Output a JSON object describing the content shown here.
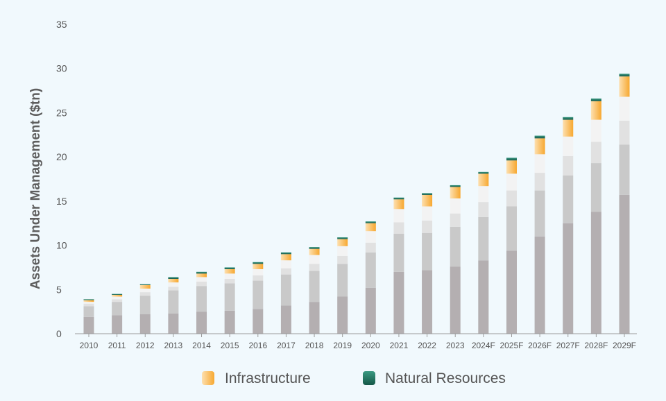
{
  "chart_data": {
    "type": "bar",
    "stacked": true,
    "ylabel": "Assets Under Management ($tn)",
    "xlabel": "",
    "ylim": [
      0,
      35
    ],
    "yticks": [
      "0",
      "5",
      "10",
      "15",
      "20",
      "25",
      "30",
      "35"
    ],
    "grid": false,
    "legend_position": "bottom",
    "categories": [
      "2010",
      "2011",
      "2012",
      "2013",
      "2014",
      "2015",
      "2016",
      "2017",
      "2018",
      "2019",
      "2020",
      "2021",
      "2022",
      "2023",
      "2024F",
      "2025F",
      "2026F",
      "2027F",
      "2028F",
      "2029F"
    ],
    "series": [
      {
        "color": "#b4afb1",
        "values": [
          1.9,
          2.1,
          2.2,
          2.3,
          2.5,
          2.6,
          2.8,
          3.2,
          3.6,
          4.2,
          5.2,
          7.0,
          7.2,
          7.6,
          8.3,
          9.4,
          11.0,
          12.5,
          13.8,
          15.7
        ]
      },
      {
        "color": "#c9c9c9",
        "values": [
          1.2,
          1.5,
          2.1,
          2.6,
          2.9,
          3.1,
          3.2,
          3.5,
          3.5,
          3.7,
          4.0,
          4.3,
          4.2,
          4.5,
          4.9,
          5.0,
          5.2,
          5.4,
          5.5,
          5.7
        ]
      },
      {
        "color": "#e1e1e1",
        "values": [
          0.3,
          0.3,
          0.4,
          0.4,
          0.5,
          0.5,
          0.6,
          0.7,
          0.8,
          0.9,
          1.1,
          1.3,
          1.4,
          1.5,
          1.7,
          1.8,
          2.0,
          2.2,
          2.4,
          2.7
        ]
      },
      {
        "color": "#f3f3f3",
        "values": [
          0.2,
          0.3,
          0.4,
          0.5,
          0.5,
          0.6,
          0.7,
          0.9,
          1.0,
          1.1,
          1.3,
          1.5,
          1.6,
          1.7,
          1.8,
          1.9,
          2.1,
          2.2,
          2.5,
          2.7
        ]
      },
      {
        "name": "Infrastructure",
        "color": "#f9b552",
        "values": [
          0.2,
          0.2,
          0.4,
          0.4,
          0.4,
          0.5,
          0.6,
          0.7,
          0.7,
          0.8,
          0.9,
          1.1,
          1.3,
          1.3,
          1.4,
          1.5,
          1.8,
          1.9,
          2.1,
          2.3
        ]
      },
      {
        "name": "Natural Resources",
        "color": "#1f6f5a",
        "values": [
          0.1,
          0.1,
          0.1,
          0.2,
          0.2,
          0.2,
          0.2,
          0.2,
          0.2,
          0.2,
          0.2,
          0.2,
          0.2,
          0.2,
          0.2,
          0.3,
          0.3,
          0.3,
          0.3,
          0.3
        ]
      }
    ],
    "legend": [
      {
        "label": "Infrastructure",
        "color_top": "#fde0b0",
        "color_bottom": "#f7a830"
      },
      {
        "label": "Natural Resources",
        "color_top": "#3b9a82",
        "color_bottom": "#155848"
      }
    ]
  }
}
